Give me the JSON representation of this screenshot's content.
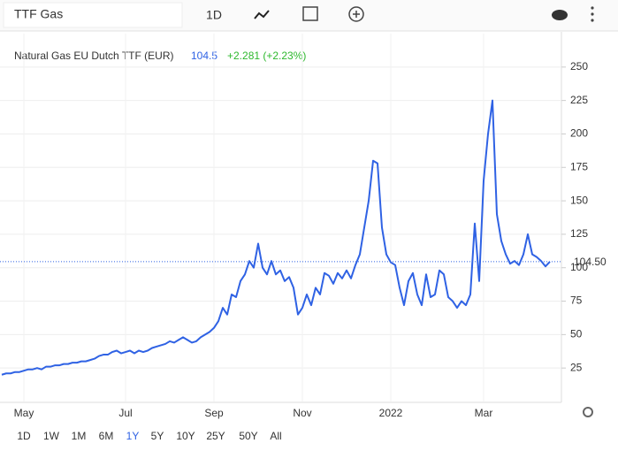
{
  "toolbar": {
    "search": "TTF Gas",
    "interval": "1D"
  },
  "chart_data": {
    "type": "line",
    "legend": {
      "name": "Natural Gas EU Dutch TTF (EUR)",
      "price": 104.5,
      "change": "+2.281 (+2.23%)"
    },
    "categories": [
      null,
      null,
      null,
      null,
      null,
      "May",
      null,
      null,
      null,
      null,
      null,
      null,
      null,
      null,
      null,
      null,
      null,
      null,
      null,
      null,
      null,
      null,
      null,
      null,
      null,
      null,
      null,
      null,
      "Jul",
      null,
      null,
      null,
      null,
      null,
      null,
      null,
      null,
      null,
      null,
      null,
      null,
      null,
      null,
      null,
      null,
      null,
      null,
      null,
      "Sep",
      null,
      null,
      null,
      null,
      null,
      null,
      null,
      null,
      null,
      null,
      null,
      null,
      null,
      null,
      null,
      null,
      null,
      null,
      null,
      "Nov",
      null,
      null,
      null,
      null,
      null,
      null,
      null,
      null,
      null,
      null,
      null,
      null,
      null,
      null,
      null,
      null,
      null,
      null,
      null,
      "2022",
      null,
      null,
      null,
      null,
      null,
      null,
      null,
      null,
      null,
      null,
      null,
      null,
      null,
      null,
      null,
      null,
      null,
      null,
      null,
      null,
      "Mar",
      null,
      null,
      null,
      null,
      null,
      null,
      null,
      null,
      null,
      null,
      null,
      null,
      null,
      null,
      null
    ],
    "series": [
      {
        "name": "TTF Gas",
        "color": "#2f62e4",
        "values": [
          20,
          21,
          21,
          22,
          22,
          23,
          24,
          24,
          25,
          24,
          26,
          26,
          27,
          27,
          28,
          28,
          29,
          29,
          30,
          30,
          31,
          32,
          34,
          35,
          35,
          37,
          38,
          36,
          37,
          38,
          36,
          38,
          37,
          38,
          40,
          41,
          42,
          43,
          45,
          44,
          46,
          48,
          46,
          44,
          45,
          48,
          50,
          52,
          55,
          60,
          70,
          65,
          80,
          78,
          90,
          95,
          105,
          100,
          118,
          100,
          95,
          105,
          95,
          98,
          90,
          93,
          85,
          65,
          70,
          80,
          72,
          85,
          80,
          96,
          94,
          88,
          96,
          92,
          98,
          92,
          102,
          110,
          130,
          150,
          180,
          178,
          130,
          110,
          104,
          102,
          85,
          72,
          90,
          96,
          80,
          72,
          95,
          78,
          80,
          98,
          95,
          78,
          75,
          70,
          75,
          72,
          80,
          133,
          90,
          165,
          200,
          225,
          140,
          120,
          110,
          103,
          105,
          102,
          110,
          125,
          110,
          108,
          105,
          101,
          104.5
        ]
      }
    ],
    "ylim": [
      0,
      275
    ],
    "yticks": [
      25,
      50,
      75,
      100,
      125,
      150,
      175,
      200,
      225,
      250
    ],
    "grid": true,
    "price_marker": {
      "value": 104.5,
      "label": "104.50"
    },
    "ranges": [
      "1D",
      "1W",
      "1M",
      "6M",
      "1Y",
      "5Y",
      "10Y",
      "25Y",
      "50Y",
      "All"
    ],
    "selected_range": "1Y"
  }
}
